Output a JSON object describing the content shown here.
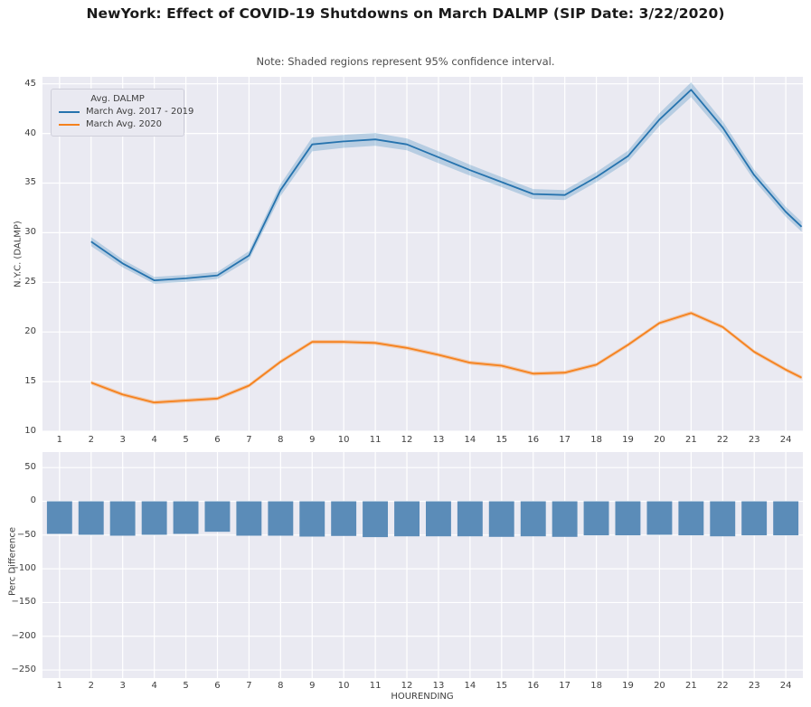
{
  "title": "NewYork: Effect of COVID-19 Shutdowns on March DALMP (SIP Date: 3/22/2020)",
  "note": "Note: Shaded regions represent 95% confidence interval.",
  "colors": {
    "figure_bg": "#ffffff",
    "plot_bg": "#eaeaf2",
    "grid": "#ffffff",
    "blue_line": "#2673ae",
    "blue_band": "rgba(31,119,180,0.25)",
    "orange_line": "#f5821e",
    "orange_band": "rgba(255,127,14,0.3)",
    "bar_fill": "#5b8cb8",
    "text": "#3d3d3d"
  },
  "chart_data": [
    {
      "type": "line",
      "ylabel": "N.Y.C. (DALMP)",
      "xlabel": "",
      "xlim": [
        0.46,
        24.54
      ],
      "ylim": [
        10,
        45.7
      ],
      "xticks": [
        1,
        2,
        3,
        4,
        5,
        6,
        7,
        8,
        9,
        10,
        11,
        12,
        13,
        14,
        15,
        16,
        17,
        18,
        19,
        20,
        21,
        22,
        23,
        24
      ],
      "yticks": [
        10,
        15,
        20,
        25,
        30,
        35,
        40,
        45
      ],
      "grid": true,
      "legend": {
        "title": "Avg. DALMP",
        "position": "upper left",
        "items": [
          "March Avg. 2017 - 2019",
          "March Avg. 2020"
        ]
      },
      "x": [
        2,
        3,
        4,
        5,
        6,
        7,
        8,
        9,
        10,
        11,
        12,
        13,
        14,
        15,
        16,
        17,
        18,
        19,
        20,
        21,
        22,
        23,
        24,
        24.5
      ],
      "series": [
        {
          "name": "March Avg. 2017 - 2019",
          "color_key": "blue",
          "values": [
            29.1,
            26.9,
            25.2,
            25.4,
            25.7,
            27.7,
            34.3,
            38.9,
            39.2,
            39.4,
            38.9,
            37.6,
            36.3,
            35.1,
            33.9,
            33.8,
            35.6,
            37.7,
            41.4,
            44.4,
            40.6,
            35.8,
            32.1,
            30.6
          ],
          "ci_halfwidth": [
            0.45,
            0.4,
            0.35,
            0.35,
            0.35,
            0.45,
            0.6,
            0.7,
            0.65,
            0.65,
            0.6,
            0.6,
            0.55,
            0.5,
            0.5,
            0.5,
            0.5,
            0.55,
            0.65,
            0.75,
            0.65,
            0.55,
            0.5,
            0.5
          ]
        },
        {
          "name": "March Avg. 2020",
          "color_key": "orange",
          "values": [
            14.9,
            13.7,
            12.9,
            13.1,
            13.3,
            14.6,
            17.0,
            19.0,
            19.0,
            18.9,
            18.4,
            17.7,
            16.9,
            16.6,
            15.8,
            15.9,
            16.7,
            18.7,
            20.9,
            21.9,
            20.5,
            18.0,
            16.2,
            15.4
          ],
          "ci_halfwidth": [
            0.2,
            0.2,
            0.2,
            0.2,
            0.2,
            0.2,
            0.2,
            0.2,
            0.2,
            0.2,
            0.2,
            0.2,
            0.2,
            0.2,
            0.2,
            0.2,
            0.2,
            0.2,
            0.2,
            0.2,
            0.2,
            0.2,
            0.2,
            0.2
          ]
        }
      ]
    },
    {
      "type": "bar",
      "ylabel": "Perc Difference",
      "xlabel": "HOURENDING",
      "xlim": [
        0.46,
        24.54
      ],
      "ylim": [
        -262,
        73
      ],
      "xticks": [
        1,
        2,
        3,
        4,
        5,
        6,
        7,
        8,
        9,
        10,
        11,
        12,
        13,
        14,
        15,
        16,
        17,
        18,
        19,
        20,
        21,
        22,
        23,
        24
      ],
      "yticks": [
        50,
        0,
        -50,
        -100,
        -150,
        -200,
        -250
      ],
      "grid": true,
      "bar_width": 0.8,
      "categories": [
        1,
        2,
        3,
        4,
        5,
        6,
        7,
        8,
        9,
        10,
        11,
        12,
        13,
        14,
        15,
        16,
        17,
        18,
        19,
        20,
        21,
        22,
        23,
        24
      ],
      "values": [
        -48.3,
        -49.6,
        -50.9,
        -49.6,
        -48.3,
        -45.1,
        -50.9,
        -50.9,
        -52.2,
        -51.3,
        -53.0,
        -51.8,
        -51.8,
        -51.8,
        -52.6,
        -51.8,
        -52.6,
        -50.4,
        -50.4,
        -49.6,
        -50.4,
        -51.8,
        -50.4,
        -50.4
      ]
    }
  ]
}
